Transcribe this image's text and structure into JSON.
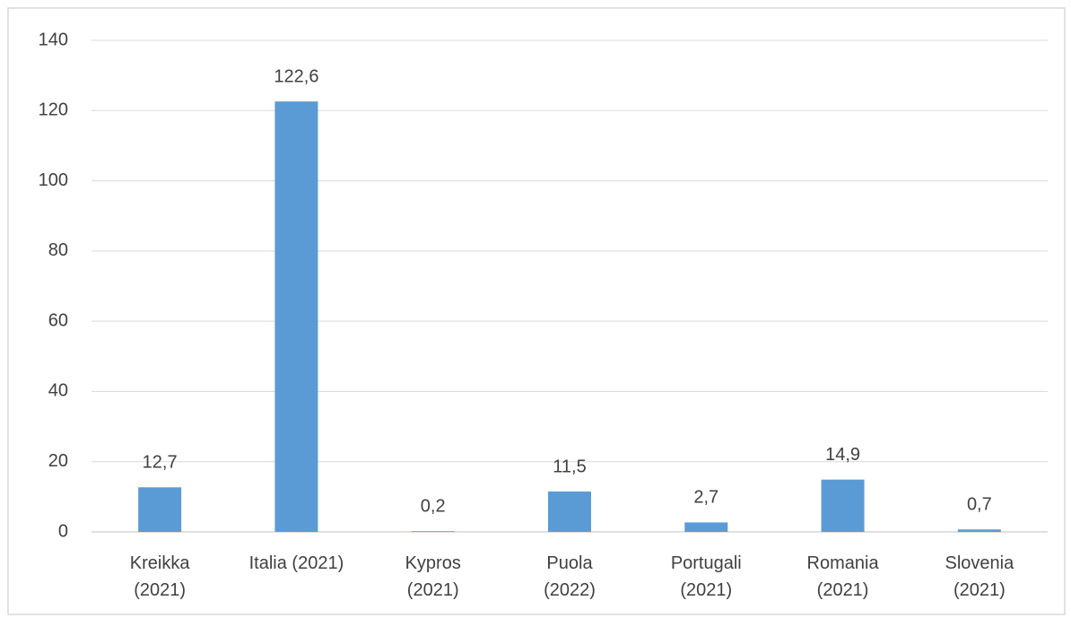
{
  "chart_data": {
    "type": "bar",
    "categories": [
      "Kreikka\n(2021)",
      "Italia (2021)",
      "Kypros\n(2021)",
      "Puola\n(2022)",
      "Portugali\n(2021)",
      "Romania\n(2021)",
      "Slovenia\n(2021)"
    ],
    "values": [
      12.7,
      122.6,
      0.2,
      11.5,
      2.7,
      14.9,
      0.7
    ],
    "value_labels": [
      "12,7",
      "122,6",
      "0,2",
      "11,5",
      "2,7",
      "14,9",
      "0,7"
    ],
    "color": "#5b9bd5",
    "ylim": [
      0,
      140
    ],
    "yticks": [
      0,
      20,
      40,
      60,
      80,
      100,
      120,
      140
    ],
    "grid": true
  }
}
